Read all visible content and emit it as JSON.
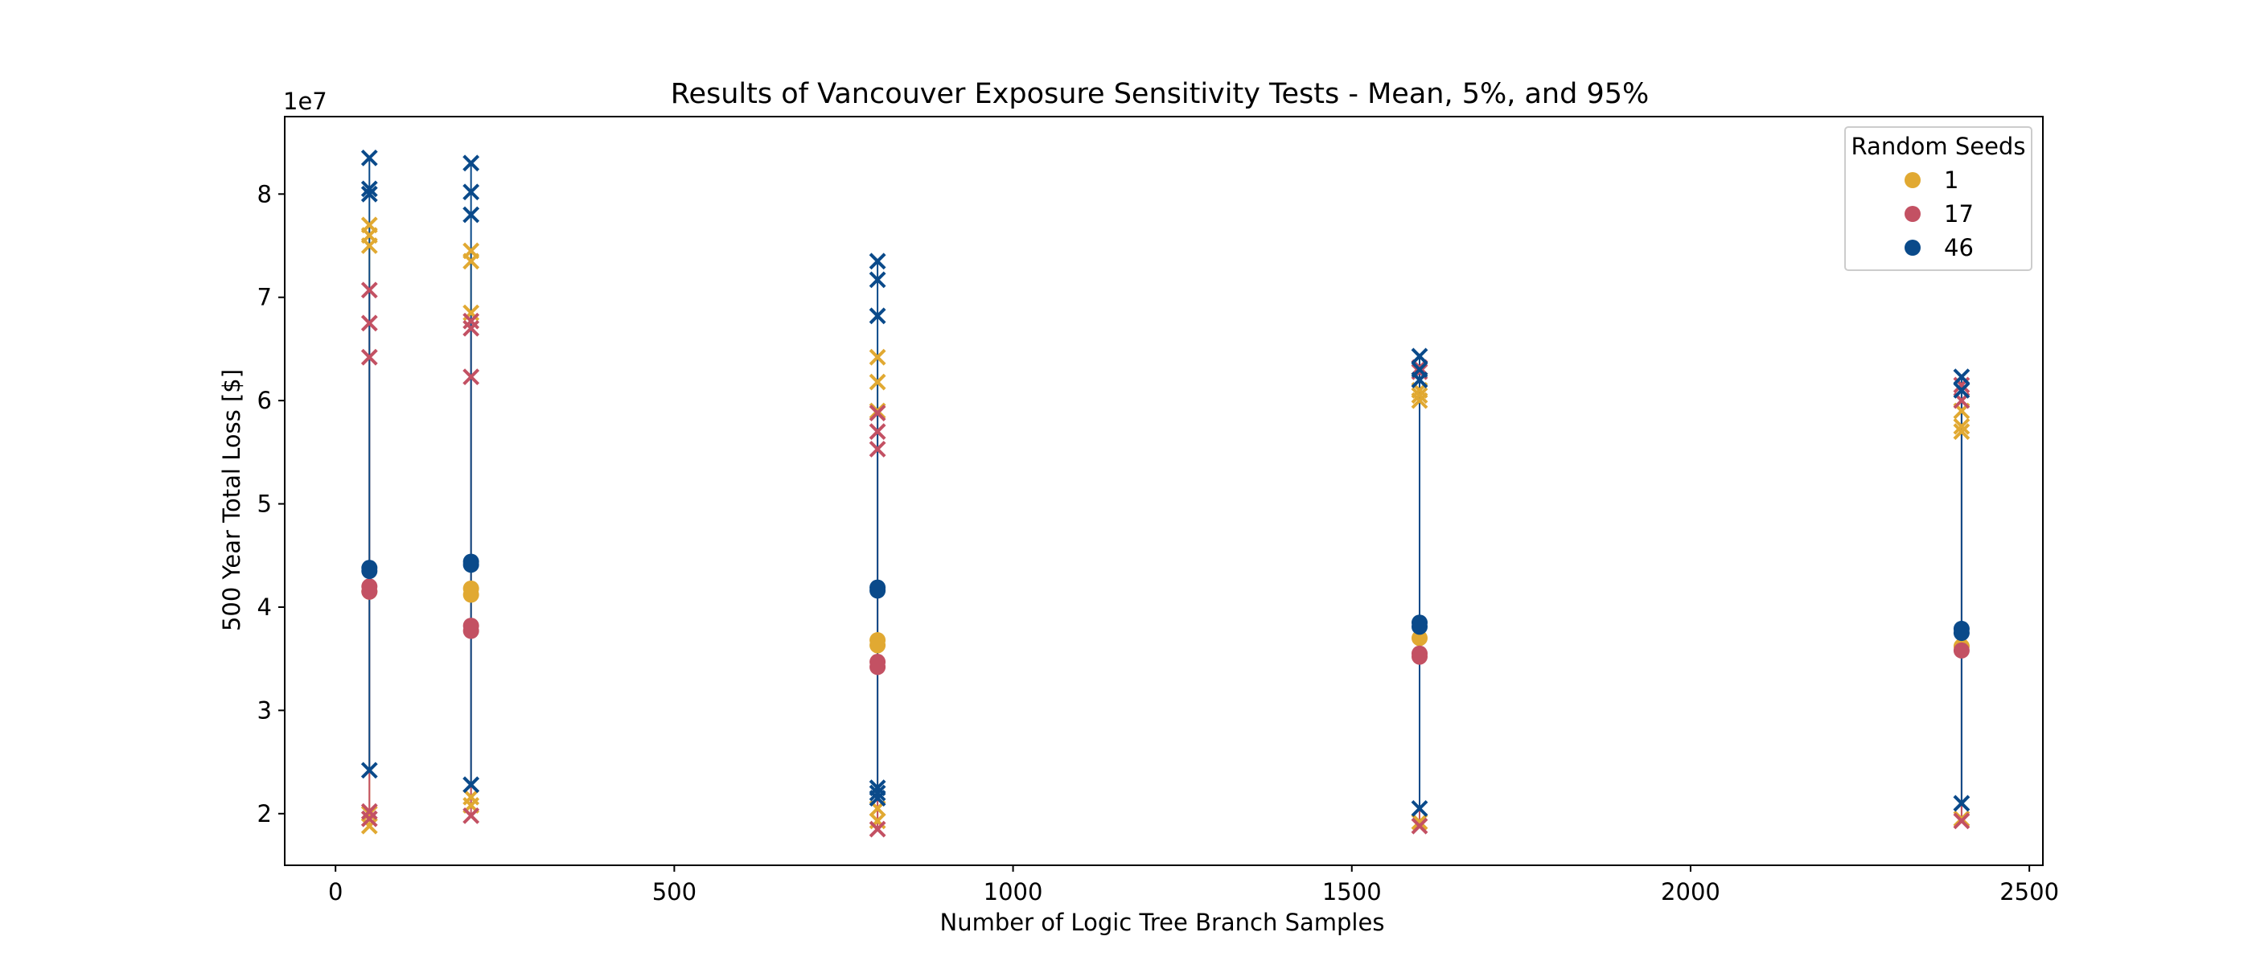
{
  "chart_data": {
    "type": "scatter",
    "title": "Results of Vancouver Exposure Sensitivity Tests - Mean, 5%, and 95%",
    "xlabel": "Number of Logic Tree Branch Samples",
    "ylabel": "500 Year Total Loss [$]",
    "y_offset_label": "1e7",
    "xlim": [
      -75,
      2520
    ],
    "ylim": [
      1.5,
      8.75
    ],
    "x_ticks": [
      0,
      500,
      1000,
      1500,
      2000,
      2500
    ],
    "x_tick_labels": [
      "0",
      "500",
      "1000",
      "1500",
      "2000",
      "2500"
    ],
    "y_ticks": [
      2,
      3,
      4,
      5,
      6,
      7,
      8
    ],
    "y_tick_labels": [
      "2",
      "3",
      "4",
      "5",
      "6",
      "7",
      "8"
    ],
    "grid": false,
    "legend": {
      "title": "Random Seeds",
      "position": "top-right"
    },
    "marker_meaning": {
      "circle": "Mean",
      "x": "5% and 95%"
    },
    "series": [
      {
        "name": "1",
        "color": "#E1A932",
        "mean": [
          {
            "x": 50,
            "y": [
              4.15
            ]
          },
          {
            "x": 200,
            "y": [
              4.18,
              4.12
            ]
          },
          {
            "x": 800,
            "y": [
              3.68,
              3.63
            ]
          },
          {
            "x": 1600,
            "y": [
              3.7
            ]
          },
          {
            "x": 2400,
            "y": [
              3.62
            ]
          }
        ],
        "percentiles": [
          {
            "x": 50,
            "y": [
              1.88,
              2.0,
              7.7,
              7.6,
              7.5
            ]
          },
          {
            "x": 200,
            "y": [
              2.08,
              2.16,
              6.85,
              7.45,
              7.35
            ]
          },
          {
            "x": 800,
            "y": [
              1.93,
              2.05,
              6.42,
              6.18,
              5.9
            ]
          },
          {
            "x": 1600,
            "y": [
              1.92,
              6.0,
              6.1,
              6.05
            ]
          },
          {
            "x": 2400,
            "y": [
              1.95,
              5.9,
              5.75,
              5.7
            ]
          }
        ]
      },
      {
        "name": "17",
        "color": "#C35163",
        "mean": [
          {
            "x": 50,
            "y": [
              4.2,
              4.15
            ]
          },
          {
            "x": 200,
            "y": [
              3.82,
              3.77
            ]
          },
          {
            "x": 800,
            "y": [
              3.47,
              3.42
            ]
          },
          {
            "x": 1600,
            "y": [
              3.55,
              3.52
            ]
          },
          {
            "x": 2400,
            "y": [
              3.58
            ]
          }
        ],
        "percentiles": [
          {
            "x": 50,
            "y": [
              1.95,
              2.02,
              7.07,
              6.75,
              6.42
            ]
          },
          {
            "x": 200,
            "y": [
              1.98,
              6.7,
              6.77,
              6.23
            ]
          },
          {
            "x": 800,
            "y": [
              1.85,
              5.88,
              5.7,
              5.53
            ]
          },
          {
            "x": 1600,
            "y": [
              1.88,
              6.32,
              6.28
            ]
          },
          {
            "x": 2400,
            "y": [
              1.93,
              6.15,
              6.0
            ]
          }
        ]
      },
      {
        "name": "46",
        "color": "#0A4A8A",
        "mean": [
          {
            "x": 50,
            "y": [
              4.38,
              4.35
            ]
          },
          {
            "x": 200,
            "y": [
              4.44,
              4.41
            ]
          },
          {
            "x": 800,
            "y": [
              4.19,
              4.16
            ]
          },
          {
            "x": 1600,
            "y": [
              3.85,
              3.81
            ]
          },
          {
            "x": 2400,
            "y": [
              3.79,
              3.75
            ]
          }
        ],
        "percentiles": [
          {
            "x": 50,
            "y": [
              2.42,
              8.35,
              8.05,
              8.0
            ]
          },
          {
            "x": 200,
            "y": [
              2.28,
              8.3,
              8.02,
              7.8
            ]
          },
          {
            "x": 800,
            "y": [
              2.2,
              2.15,
              2.25,
              7.35,
              7.17,
              6.82
            ]
          },
          {
            "x": 1600,
            "y": [
              2.05,
              6.43,
              6.3,
              6.2
            ]
          },
          {
            "x": 2400,
            "y": [
              2.1,
              6.23,
              6.1
            ]
          }
        ]
      }
    ]
  }
}
